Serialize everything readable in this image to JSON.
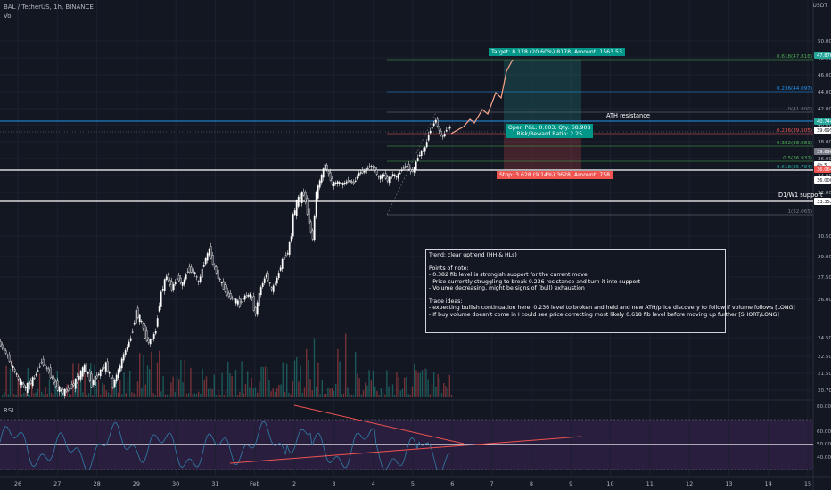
{
  "header": {
    "symbol_line": "BAL / TetherUS, 1h, BINANCE",
    "volume_label": "Vol",
    "currency": "USDT"
  },
  "rsi": {
    "title": "RSI",
    "axis_ticks": [
      "80.00",
      "60.00",
      "50.00",
      "40.00"
    ],
    "current_label": "50.00"
  },
  "annotations": {
    "target": "Target: 8.178 (20.60%) 8178, Amount: 1563.53",
    "stop": "Stop: 3.628 (9.14%) 3628, Amount: 758",
    "pnl_line1": "Open P&L: 0.003, Qty: 68.908",
    "pnl_line2": "Risk/Reward Ratio: 2.25",
    "ath_resistance": "ATH resistance",
    "support": "D1/W1 support",
    "fib_labels": [
      "0.618(47.816)",
      "0.236(44.097)",
      "0(41.800)",
      "0.236(39.505)",
      "0.382(38.081)",
      "0.5(36.932)",
      "0.618(35.784)",
      "1(32.065)"
    ],
    "note_lines": [
      "Trend: clear uptrend (HH & HLs)",
      "",
      "Points of note:",
      "- 0.382 fib level is  strongish support for the current move",
      "- Price currently struggling to break 0.236 resistance and turn it into support",
      "- Volume decreasing, might be signs of (bull) exhaustion",
      "",
      "Trade ideas:",
      "- expecting bullish continuation here. 0.236 level to broken and held and new ATH/price discovery to follow if volume follows [LONG]",
      "- If buy volume doesn't come in I could see price correcting most likely 0.618 fib level before moving up further [SHORT/LONG]"
    ]
  },
  "chart_data": {
    "type": "candlestick",
    "symbol": "BAL / TetherUS",
    "interval": "1h",
    "exchange": "BINANCE",
    "y_ticks": [
      50.0,
      48.0,
      46.0,
      44.0,
      42.0,
      40.0,
      38.0,
      36.0,
      34.0,
      32.0,
      30.5,
      29.0,
      27.5,
      26.0,
      24.5,
      22.5,
      21.5,
      20.7
    ],
    "price_badges": [
      {
        "value": "47.870",
        "color": "#26a69a"
      },
      {
        "value": "40.744",
        "color": "#26a69a"
      },
      {
        "value": "39.695",
        "color": "#ffffff"
      },
      {
        "value": "39.690",
        "color": "#787b86"
      },
      {
        "value": "4h 5",
        "color": "#ffffff"
      },
      {
        "value": "36.064",
        "color": "#ef5350"
      },
      {
        "value": "36.000",
        "color": "#ffffff"
      },
      {
        "value": "33.352",
        "color": "#ffffff"
      }
    ],
    "x_ticks": [
      "26",
      "27",
      "28",
      "29",
      "30",
      "31",
      "Feb",
      "2",
      "3",
      "4",
      "5",
      "6",
      "7",
      "8",
      "9",
      "10",
      "11",
      "12",
      "13",
      "14",
      "15"
    ],
    "price_path": [
      [
        0,
        24.0
      ],
      [
        6,
        23.1
      ],
      [
        14,
        22.0
      ],
      [
        22,
        21.2
      ],
      [
        30,
        20.8
      ],
      [
        40,
        21.3
      ],
      [
        48,
        22.2
      ],
      [
        56,
        21.6
      ],
      [
        64,
        20.9
      ],
      [
        72,
        20.6
      ],
      [
        80,
        20.8
      ],
      [
        88,
        21.2
      ],
      [
        96,
        21.9
      ],
      [
        104,
        21.0
      ],
      [
        112,
        21.5
      ],
      [
        120,
        22.0
      ],
      [
        128,
        20.9
      ],
      [
        136,
        21.9
      ],
      [
        142,
        23.1
      ],
      [
        148,
        24.5
      ],
      [
        154,
        25.5
      ],
      [
        160,
        25.1
      ],
      [
        168,
        24.0
      ],
      [
        176,
        24.8
      ],
      [
        182,
        26.4
      ],
      [
        188,
        27.6
      ],
      [
        194,
        26.7
      ],
      [
        200,
        27.5
      ],
      [
        206,
        27.0
      ],
      [
        212,
        28.0
      ],
      [
        218,
        28.0
      ],
      [
        224,
        27.1
      ],
      [
        230,
        28.5
      ],
      [
        236,
        29.5
      ],
      [
        240,
        28.5
      ],
      [
        246,
        27.5
      ],
      [
        252,
        26.8
      ],
      [
        258,
        26.2
      ],
      [
        264,
        26.0
      ],
      [
        270,
        25.8
      ],
      [
        276,
        26.2
      ],
      [
        282,
        26.3
      ],
      [
        288,
        25.4
      ],
      [
        294,
        26.8
      ],
      [
        300,
        27.7
      ],
      [
        306,
        26.6
      ],
      [
        312,
        27.4
      ],
      [
        318,
        28.7
      ],
      [
        324,
        29.3
      ],
      [
        330,
        31.2
      ],
      [
        336,
        31.8
      ],
      [
        342,
        32.0
      ],
      [
        348,
        31.0
      ],
      [
        352,
        30.3
      ],
      [
        356,
        32.0
      ],
      [
        362,
        34.0
      ],
      [
        366,
        35.3
      ],
      [
        370,
        34.1
      ],
      [
        374,
        33.0
      ],
      [
        380,
        33.2
      ],
      [
        386,
        33.0
      ],
      [
        392,
        33.4
      ],
      [
        398,
        33.1
      ],
      [
        404,
        34.3
      ],
      [
        410,
        34.5
      ],
      [
        416,
        35.1
      ],
      [
        420,
        35.0
      ],
      [
        426,
        33.8
      ],
      [
        432,
        34.1
      ],
      [
        436,
        33.4
      ],
      [
        442,
        34.2
      ],
      [
        446,
        33.8
      ],
      [
        452,
        34.7
      ],
      [
        458,
        35.2
      ],
      [
        462,
        34.4
      ],
      [
        466,
        34.8
      ],
      [
        470,
        36.2
      ],
      [
        474,
        36.8
      ],
      [
        478,
        37.2
      ],
      [
        482,
        38.9
      ],
      [
        486,
        39.8
      ],
      [
        490,
        40.6
      ],
      [
        494,
        39.2
      ],
      [
        498,
        38.5
      ],
      [
        502,
        39.5
      ],
      [
        506,
        39.7
      ]
    ],
    "rsi_ylim": [
      30,
      90
    ],
    "volume_note": "volume histogram bars along the bottom of the price pane"
  }
}
